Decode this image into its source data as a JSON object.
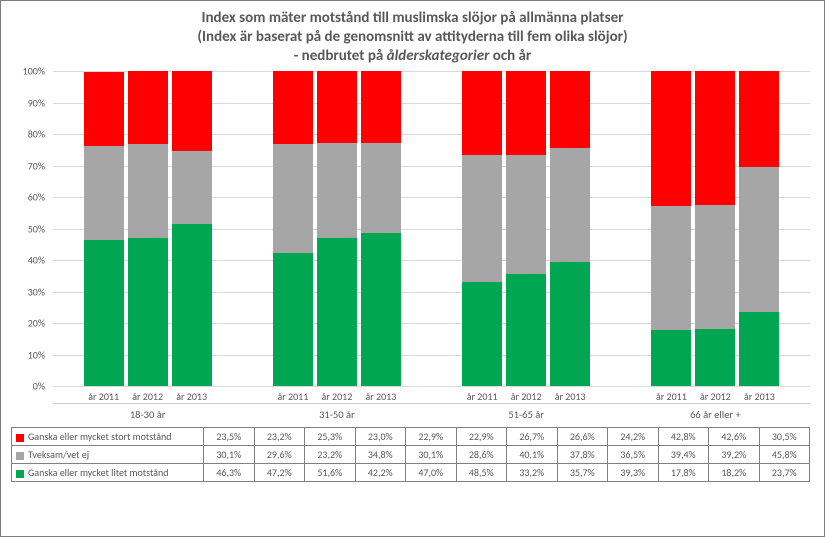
{
  "title": {
    "line1": "Index som mäter motstånd till muslimska slöjor på allmänna platser",
    "line2": "(Index är baserat på de genomsnitt av attityderna till fem olika slöjor)",
    "line3_pre": "- nedbrutet på ",
    "line3_em": "ålderskategorier",
    "line3_post": " och år"
  },
  "chart": {
    "type": "stacked-bar",
    "ylim": [
      0,
      100
    ],
    "ytick_step": 10,
    "y_suffix": "%",
    "grid_color": "#d9d9d9",
    "background_color": "#ffffff",
    "categories": [
      "18-30 år",
      "31-50 år",
      "51-65 år",
      "66 år eller +"
    ],
    "subcats": [
      "år 2011",
      "år 2012",
      "år 2013"
    ],
    "series": [
      {
        "key": "stort",
        "label": "Ganska eller mycket stort motstånd",
        "color": "#ff0000",
        "values": [
          [
            23.5,
            23.2,
            25.3
          ],
          [
            23.0,
            22.9,
            22.9
          ],
          [
            26.7,
            26.6,
            24.2
          ],
          [
            42.8,
            42.6,
            30.5
          ]
        ],
        "display": [
          [
            "23,5%",
            "23,2%",
            "25,3%"
          ],
          [
            "23,0%",
            "22,9%",
            "22,9%"
          ],
          [
            "26,7%",
            "26,6%",
            "24,2%"
          ],
          [
            "42,8%",
            "42,6%",
            "30,5%"
          ]
        ]
      },
      {
        "key": "tveksam",
        "label": "Tveksam/vet ej",
        "color": "#a6a6a6",
        "values": [
          [
            30.1,
            29.6,
            23.2
          ],
          [
            34.8,
            30.1,
            28.6
          ],
          [
            40.1,
            37.8,
            36.5
          ],
          [
            39.4,
            39.2,
            45.8
          ]
        ],
        "display": [
          [
            "30,1%",
            "29,6%",
            "23,2%"
          ],
          [
            "34,8%",
            "30,1%",
            "28,6%"
          ],
          [
            "40,1%",
            "37,8%",
            "36,5%"
          ],
          [
            "39,4%",
            "39,2%",
            "45,8%"
          ]
        ]
      },
      {
        "key": "litet",
        "label": "Ganska eller mycket litet motstånd",
        "color": "#00a651",
        "values": [
          [
            46.3,
            47.2,
            51.6
          ],
          [
            42.2,
            47.0,
            48.5
          ],
          [
            33.2,
            35.7,
            39.3
          ],
          [
            17.8,
            18.2,
            23.7
          ]
        ],
        "display": [
          [
            "46,3%",
            "47,2%",
            "51,6%"
          ],
          [
            "42,2%",
            "47,0%",
            "48,5%"
          ],
          [
            "33,2%",
            "35,7%",
            "39,3%"
          ],
          [
            "17,8%",
            "18,2%",
            "23,7%"
          ]
        ]
      }
    ],
    "stack_order": [
      "litet",
      "tveksam",
      "stort"
    ],
    "table_order": [
      "stort",
      "tveksam",
      "litet"
    ]
  }
}
